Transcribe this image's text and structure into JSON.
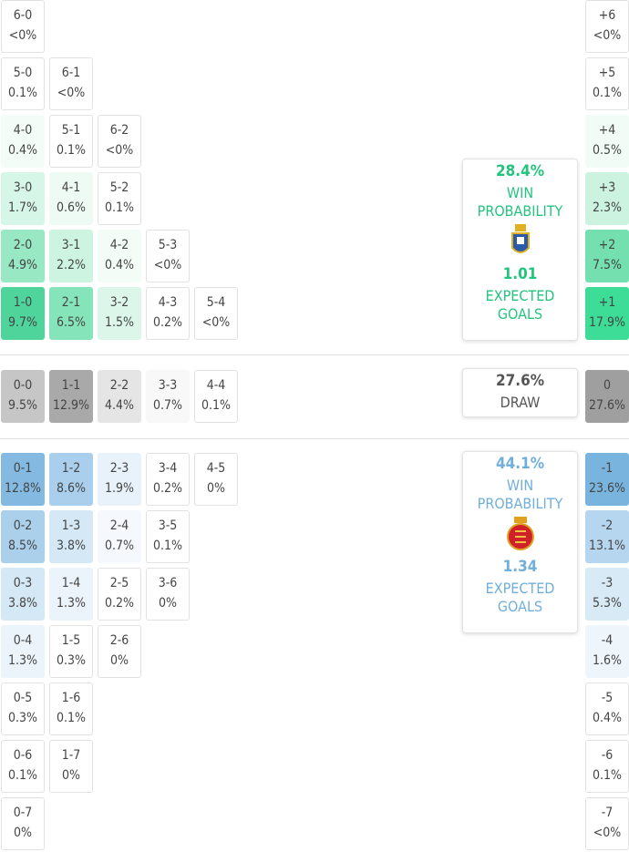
{
  "home": {
    "rows": [
      [
        {
          "score": "6-0",
          "pct": "<0%"
        }
      ],
      [
        {
          "score": "5-0",
          "pct": "0.1%"
        },
        {
          "score": "6-1",
          "pct": "<0%"
        }
      ],
      [
        {
          "score": "4-0",
          "pct": "0.4%",
          "color": "#f4fcf8"
        },
        {
          "score": "5-1",
          "pct": "0.1%"
        },
        {
          "score": "6-2",
          "pct": "<0%"
        }
      ],
      [
        {
          "score": "3-0",
          "pct": "1.7%",
          "color": "#d6f6e7"
        },
        {
          "score": "4-1",
          "pct": "0.6%",
          "color": "#eefbf5"
        },
        {
          "score": "5-2",
          "pct": "0.1%"
        }
      ],
      [
        {
          "score": "2-0",
          "pct": "4.9%",
          "color": "#98e8c3"
        },
        {
          "score": "3-1",
          "pct": "2.2%",
          "color": "#cdf4e1"
        },
        {
          "score": "4-2",
          "pct": "0.4%",
          "color": "#f4fcf8"
        },
        {
          "score": "5-3",
          "pct": "<0%"
        }
      ],
      [
        {
          "score": "1-0",
          "pct": "9.7%",
          "color": "#4fd59c"
        },
        {
          "score": "2-1",
          "pct": "6.5%",
          "color": "#86e4ba"
        },
        {
          "score": "3-2",
          "pct": "1.5%",
          "color": "#dcf7ea"
        },
        {
          "score": "4-3",
          "pct": "0.2%"
        },
        {
          "score": "5-4",
          "pct": "<0%"
        }
      ]
    ],
    "margins": [
      {
        "score": "+6",
        "pct": "<0%"
      },
      {
        "score": "+5",
        "pct": "0.1%"
      },
      {
        "score": "+4",
        "pct": "0.5%",
        "color": "#f2fcf7"
      },
      {
        "score": "+3",
        "pct": "2.3%",
        "color": "#cbf3e0"
      },
      {
        "score": "+2",
        "pct": "7.5%",
        "color": "#74e0b0"
      },
      {
        "score": "+1",
        "pct": "17.9%",
        "color": "#3ddc97"
      }
    ],
    "card": {
      "probability": "28.4%",
      "probability_label": "WIN PROBABILITY",
      "xg": "1.01",
      "xg_label": "EXPECTED GOALS"
    }
  },
  "draw": {
    "row": [
      {
        "score": "0-0",
        "pct": "9.5%",
        "color": "#c6c6c6"
      },
      {
        "score": "1-1",
        "pct": "12.9%",
        "color": "#a9a9a9"
      },
      {
        "score": "2-2",
        "pct": "4.4%",
        "color": "#e5e5e5"
      },
      {
        "score": "3-3",
        "pct": "0.7%",
        "color": "#f8f8f8"
      },
      {
        "score": "4-4",
        "pct": "0.1%"
      }
    ],
    "margin": {
      "score": "0",
      "pct": "27.6%",
      "color": "#9f9f9f"
    },
    "card": {
      "probability": "27.6%",
      "probability_label": "DRAW"
    }
  },
  "away": {
    "rows": [
      [
        {
          "score": "0-1",
          "pct": "12.8%",
          "color": "#84bae1"
        },
        {
          "score": "1-2",
          "pct": "8.6%",
          "color": "#a9cfec"
        },
        {
          "score": "2-3",
          "pct": "1.9%",
          "color": "#e8f2fb"
        },
        {
          "score": "3-4",
          "pct": "0.2%"
        },
        {
          "score": "4-5",
          "pct": "0%"
        }
      ],
      [
        {
          "score": "0-2",
          "pct": "8.5%",
          "color": "#abd0ec"
        },
        {
          "score": "1-3",
          "pct": "3.8%",
          "color": "#d5e8f6"
        },
        {
          "score": "2-4",
          "pct": "0.7%",
          "color": "#f5f9fd"
        },
        {
          "score": "3-5",
          "pct": "0.1%"
        }
      ],
      [
        {
          "score": "0-3",
          "pct": "3.8%",
          "color": "#d5e8f6"
        },
        {
          "score": "1-4",
          "pct": "1.3%",
          "color": "#ecf4fb"
        },
        {
          "score": "2-5",
          "pct": "0.2%"
        },
        {
          "score": "3-6",
          "pct": "0%"
        }
      ],
      [
        {
          "score": "0-4",
          "pct": "1.3%",
          "color": "#ecf4fb"
        },
        {
          "score": "1-5",
          "pct": "0.3%"
        },
        {
          "score": "2-6",
          "pct": "0%"
        }
      ],
      [
        {
          "score": "0-5",
          "pct": "0.3%"
        },
        {
          "score": "1-6",
          "pct": "0.1%"
        }
      ],
      [
        {
          "score": "0-6",
          "pct": "0.1%"
        },
        {
          "score": "1-7",
          "pct": "0%"
        }
      ],
      [
        {
          "score": "0-7",
          "pct": "0%"
        }
      ]
    ],
    "margins": [
      {
        "score": "-1",
        "pct": "23.6%",
        "color": "#79b4de"
      },
      {
        "score": "-2",
        "pct": "13.1%",
        "color": "#b6d6ef"
      },
      {
        "score": "-3",
        "pct": "5.3%",
        "color": "#d9eaf7"
      },
      {
        "score": "-4",
        "pct": "1.6%",
        "color": "#eef5fb"
      },
      {
        "score": "-5",
        "pct": "0.4%"
      },
      {
        "score": "-6",
        "pct": "0.1%"
      },
      {
        "score": "-7",
        "pct": "<0%"
      }
    ],
    "card": {
      "probability": "44.1%",
      "probability_label": "WIN PROBABILITY",
      "xg": "1.34",
      "xg_label": "EXPECTED GOALS"
    }
  }
}
